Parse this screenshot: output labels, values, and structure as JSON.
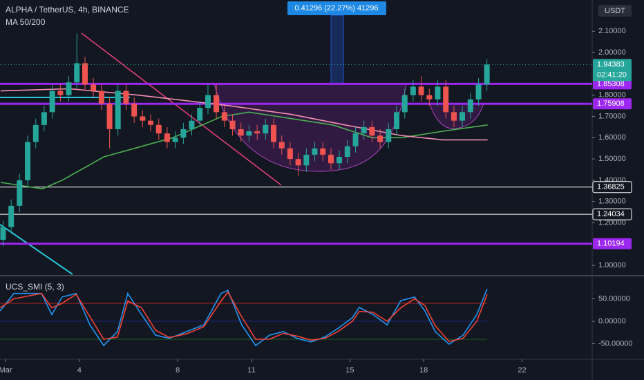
{
  "chart_data": {
    "type": "candlestick",
    "title": "ALPHA / TetherUS, 4h, BINANCE",
    "subtitle": "MA 50/200",
    "currency": "USDT",
    "annotation": "0.41296 (22.27%) 41296",
    "countdown": "02:41:20",
    "last": 1.94383,
    "up_color": "#26a69a",
    "down_color": "#ef5350",
    "xlim": [
      0.775,
      24.85
    ],
    "xticks": [
      {
        "value": 1,
        "label": "Mar"
      },
      4,
      8,
      11,
      15,
      18,
      22
    ],
    "ylim": [
      0.955,
      2.247
    ],
    "yticks": [
      {
        "value": 2.1,
        "label": "2.10000"
      },
      {
        "value": 2.0,
        "label": "2.00000"
      },
      {
        "value": 1.8,
        "label": "1.80000"
      },
      {
        "value": 1.7,
        "label": "1.70000"
      },
      {
        "value": 1.6,
        "label": "1.60000"
      },
      {
        "value": 1.5,
        "label": "1.50000"
      },
      {
        "value": 1.4,
        "label": "1.40000"
      },
      {
        "value": 1.3,
        "label": "1.30000"
      },
      {
        "value": 1.2,
        "label": "1.20000"
      },
      {
        "value": 1.0,
        "label": "1.00000"
      }
    ],
    "x": [
      0.9,
      1.23,
      1.57,
      1.9,
      2.23,
      2.57,
      2.9,
      3.23,
      3.57,
      3.9,
      4.23,
      4.57,
      4.9,
      5.23,
      5.57,
      5.9,
      6.23,
      6.57,
      6.9,
      7.23,
      7.57,
      7.9,
      8.23,
      8.57,
      8.9,
      9.23,
      9.57,
      9.9,
      10.23,
      10.57,
      10.9,
      11.23,
      11.57,
      11.9,
      12.23,
      12.57,
      12.9,
      13.23,
      13.57,
      13.9,
      14.23,
      14.57,
      14.9,
      15.23,
      15.57,
      15.9,
      16.23,
      16.57,
      16.9,
      17.23,
      17.57,
      17.9,
      18.23,
      18.57,
      18.9,
      19.23,
      19.57,
      19.9,
      20.23,
      20.57
    ],
    "open": [
      1.12,
      1.18,
      1.28,
      1.4,
      1.58,
      1.66,
      1.72,
      1.82,
      1.8,
      1.86,
      1.95,
      1.85,
      1.82,
      1.76,
      1.64,
      1.82,
      1.76,
      1.7,
      1.68,
      1.66,
      1.62,
      1.58,
      1.6,
      1.64,
      1.68,
      1.74,
      1.8,
      1.72,
      1.68,
      1.64,
      1.61,
      1.63,
      1.62,
      1.66,
      1.58,
      1.55,
      1.5,
      1.47,
      1.52,
      1.55,
      1.52,
      1.48,
      1.51,
      1.56,
      1.62,
      1.65,
      1.61,
      1.58,
      1.64,
      1.72,
      1.8,
      1.84,
      1.8,
      1.78,
      1.84,
      1.72,
      1.68,
      1.72,
      1.78,
      1.85
    ],
    "high": [
      1.21,
      1.31,
      1.43,
      1.61,
      1.69,
      1.75,
      1.85,
      1.85,
      1.89,
      2.09,
      1.98,
      1.88,
      1.85,
      1.79,
      1.85,
      1.85,
      1.79,
      1.73,
      1.71,
      1.69,
      1.65,
      1.63,
      1.67,
      1.71,
      1.77,
      1.85,
      1.85,
      1.75,
      1.71,
      1.67,
      1.66,
      1.66,
      1.69,
      1.69,
      1.61,
      1.58,
      1.53,
      1.55,
      1.58,
      1.58,
      1.55,
      1.54,
      1.59,
      1.65,
      1.68,
      1.68,
      1.64,
      1.67,
      1.75,
      1.83,
      1.87,
      1.89,
      1.83,
      1.87,
      1.87,
      1.75,
      1.75,
      1.81,
      1.88,
      1.97
    ],
    "low": [
      1.09,
      1.15,
      1.25,
      1.37,
      1.55,
      1.63,
      1.69,
      1.77,
      1.77,
      1.83,
      1.82,
      1.79,
      1.73,
      1.55,
      1.61,
      1.73,
      1.67,
      1.65,
      1.63,
      1.59,
      1.55,
      1.55,
      1.57,
      1.61,
      1.65,
      1.71,
      1.69,
      1.65,
      1.61,
      1.58,
      1.58,
      1.59,
      1.59,
      1.55,
      1.52,
      1.47,
      1.42,
      1.44,
      1.49,
      1.49,
      1.45,
      1.45,
      1.48,
      1.53,
      1.59,
      1.58,
      1.55,
      1.55,
      1.61,
      1.69,
      1.77,
      1.77,
      1.75,
      1.75,
      1.69,
      1.65,
      1.65,
      1.69,
      1.75,
      1.82
    ],
    "close": [
      1.18,
      1.28,
      1.4,
      1.58,
      1.66,
      1.72,
      1.82,
      1.8,
      1.86,
      1.95,
      1.85,
      1.82,
      1.76,
      1.64,
      1.82,
      1.76,
      1.7,
      1.68,
      1.66,
      1.62,
      1.58,
      1.6,
      1.64,
      1.68,
      1.74,
      1.8,
      1.72,
      1.68,
      1.64,
      1.61,
      1.63,
      1.62,
      1.66,
      1.58,
      1.55,
      1.5,
      1.47,
      1.52,
      1.55,
      1.52,
      1.48,
      1.51,
      1.56,
      1.62,
      1.65,
      1.61,
      1.58,
      1.64,
      1.72,
      1.8,
      1.84,
      1.8,
      1.78,
      1.84,
      1.72,
      1.68,
      1.72,
      1.78,
      1.85,
      1.94383
    ],
    "series": [
      {
        "color": "#4caf50",
        "x": [
          0.8,
          2.5,
          3.3,
          5.0,
          7.8,
          9.8,
          10.9,
          12.6,
          14.3,
          15.9,
          17.1,
          18.75,
          20.6
        ],
        "values": [
          1.39,
          1.36,
          1.4,
          1.51,
          1.6,
          1.7,
          1.72,
          1.69,
          1.66,
          1.6,
          1.6,
          1.63,
          1.66
        ]
      },
      {
        "color": "#f48fb1",
        "x": [
          0.8,
          3.6,
          6.4,
          10.1,
          12.6,
          14.8,
          17.1,
          18.75,
          20.6
        ],
        "values": [
          1.82,
          1.83,
          1.8,
          1.75,
          1.71,
          1.66,
          1.61,
          1.59,
          1.59
        ]
      }
    ],
    "levels": [
      {
        "value": 1.85308,
        "color": "#9c27f0"
      },
      {
        "value": 1.75908,
        "color": "#9c27f0"
      },
      {
        "value": 1.36825,
        "color": "#ffffff"
      },
      {
        "value": 1.24034,
        "color": "#ffffff"
      },
      {
        "value": 1.10194,
        "color": "#9c27f0"
      }
    ],
    "indicator": {
      "title": "UCS_SMI (5, 3)",
      "ylim": [
        -84.6,
        100
      ],
      "yticks": [
        {
          "value": 50,
          "label": "50.00000"
        },
        {
          "value": 0,
          "label": "0.00000"
        },
        {
          "value": -50,
          "label": "-50.00000"
        }
      ],
      "levels": [
        {
          "value": 40,
          "color": "#b22222"
        },
        {
          "value": 0,
          "color": "#1a237e"
        },
        {
          "value": -40,
          "color": "#1b5e20"
        }
      ],
      "x": [
        0.78,
        1.34,
        2.46,
        2.88,
        3.3,
        3.87,
        4.43,
        4.99,
        5.55,
        5.97,
        6.53,
        7.1,
        7.66,
        8.36,
        9.06,
        9.76,
        10.04,
        10.6,
        11.17,
        11.73,
        12.29,
        12.85,
        13.42,
        13.98,
        14.54,
        15.1,
        15.38,
        15.94,
        16.51,
        17.07,
        17.63,
        18.05,
        18.47,
        19.03,
        19.6,
        20.16,
        20.58
      ],
      "series": [
        {
          "color": "#2196f3",
          "values": [
            23,
            62,
            62,
            15,
            54,
            62,
            -8,
            -54,
            -23,
            62,
            15,
            -31,
            -38,
            -23,
            -8,
            62,
            69,
            -8,
            -54,
            -31,
            -23,
            -38,
            -46,
            -35,
            -15,
            8,
            31,
            15,
            -8,
            46,
            54,
            23,
            -23,
            -51,
            -31,
            15,
            72
          ]
        },
        {
          "color": "#f44336",
          "values": [
            30,
            50,
            62,
            30,
            40,
            60,
            10,
            -40,
            -35,
            45,
            30,
            -20,
            -36,
            -28,
            -12,
            45,
            65,
            10,
            -40,
            -40,
            -27,
            -33,
            -42,
            -38,
            -22,
            0,
            22,
            20,
            0,
            30,
            50,
            35,
            -10,
            -45,
            -38,
            0,
            60
          ]
        }
      ]
    }
  }
}
